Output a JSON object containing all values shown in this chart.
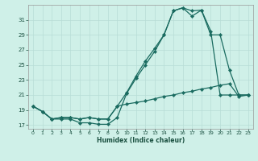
{
  "xlabel": "Humidex (Indice chaleur)",
  "bg_color": "#cff0e8",
  "grid_color": "#b8ddd6",
  "line_color": "#1a6b60",
  "ylim": [
    16.5,
    33.0
  ],
  "yticks": [
    17,
    19,
    21,
    23,
    25,
    27,
    29,
    31
  ],
  "xlim": [
    -0.5,
    23.5
  ],
  "xticks": [
    0,
    1,
    2,
    3,
    4,
    5,
    6,
    7,
    8,
    9,
    10,
    11,
    12,
    13,
    14,
    15,
    16,
    17,
    18,
    19,
    20,
    21,
    22,
    23
  ],
  "line1_x": [
    0,
    1,
    2,
    3,
    4,
    5,
    6,
    7,
    8,
    9,
    10,
    11,
    12,
    13,
    14,
    15,
    16,
    17,
    18,
    19,
    20,
    21,
    22,
    23
  ],
  "line1_y": [
    19.5,
    18.8,
    17.8,
    17.8,
    17.8,
    17.3,
    17.3,
    17.1,
    17.1,
    18.0,
    21.2,
    23.2,
    25.0,
    26.8,
    29.0,
    32.2,
    32.6,
    32.2,
    32.3,
    29.5,
    21.0,
    21.0,
    21.0,
    21.0
  ],
  "line2_x": [
    0,
    1,
    2,
    3,
    4,
    5,
    6,
    7,
    8,
    9,
    10,
    11,
    12,
    13,
    14,
    15,
    16,
    17,
    18,
    19,
    20,
    21,
    22,
    23
  ],
  "line2_y": [
    19.5,
    18.8,
    17.8,
    18.0,
    18.0,
    17.8,
    18.0,
    17.8,
    17.8,
    19.5,
    21.3,
    23.5,
    25.5,
    27.2,
    29.0,
    32.2,
    32.6,
    31.5,
    32.3,
    29.0,
    29.0,
    24.3,
    21.0,
    21.0
  ],
  "line3_x": [
    0,
    1,
    2,
    3,
    4,
    5,
    6,
    7,
    8,
    9,
    10,
    11,
    12,
    13,
    14,
    15,
    16,
    17,
    18,
    19,
    20,
    21,
    22,
    23
  ],
  "line3_y": [
    19.5,
    18.8,
    17.8,
    18.0,
    18.0,
    17.8,
    18.0,
    17.8,
    17.8,
    19.5,
    19.8,
    20.0,
    20.2,
    20.5,
    20.8,
    21.0,
    21.3,
    21.5,
    21.8,
    22.0,
    22.3,
    22.5,
    20.8,
    21.0
  ]
}
